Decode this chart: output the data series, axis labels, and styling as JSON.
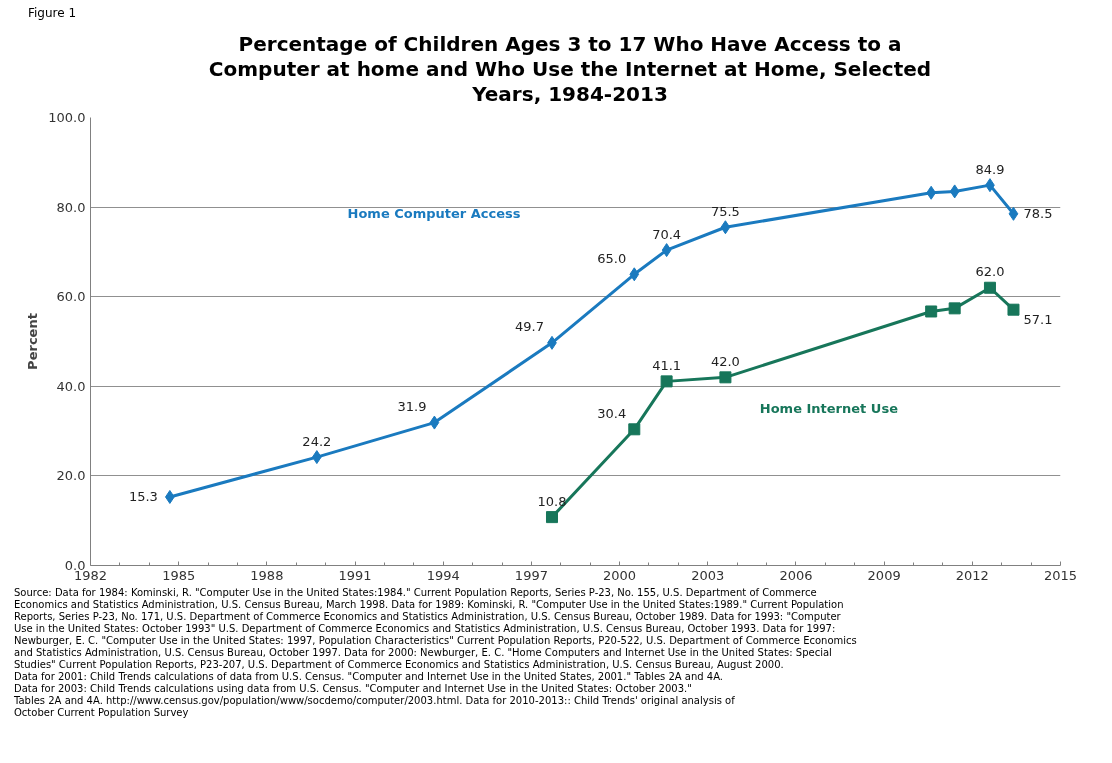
{
  "chart_data": {
    "type": "line",
    "title": "Percentage of Children Ages 3 to 17 Who Have Access to a Computer at home and Who Use the Internet at Home, Selected Years, 1984-2013",
    "ylabel": "Percent",
    "xlim": [
      1982,
      2015
    ],
    "xticks": [
      1982,
      1985,
      1988,
      1991,
      1994,
      1997,
      2000,
      2003,
      2006,
      2009,
      2012,
      2015
    ],
    "ylim": [
      0,
      100
    ],
    "yticks": [
      {
        "value": 0,
        "label": "0.0"
      },
      {
        "value": 20,
        "label": "20.0"
      },
      {
        "value": 40,
        "label": "40.0"
      },
      {
        "value": 60,
        "label": "60.0"
      },
      {
        "value": 80,
        "label": "80.0"
      },
      {
        "value": 100,
        "label": "100.0"
      }
    ],
    "grid": "y",
    "legend": false,
    "line_style": "solid",
    "series": [
      {
        "name": "Home Computer Access",
        "color": "#1a7abf",
        "marker": "diamond",
        "x": [
          1984.7,
          1989.7,
          1993.7,
          1997.7,
          2000.5,
          2001.6,
          2003.6,
          2010.6,
          2011.4,
          2012.6,
          2013.4
        ],
        "values": [
          15.3,
          24.2,
          31.9,
          49.7,
          65.0,
          70.4,
          75.5,
          83.2,
          83.5,
          84.9,
          78.5
        ],
        "value_labels": [
          "15.3",
          "24.2",
          "31.9",
          "49.7",
          "65.0",
          "70.4",
          "75.5",
          null,
          null,
          "84.9",
          "78.5"
        ]
      },
      {
        "name": "Home Internet Use",
        "color": "#17765a",
        "marker": "square",
        "x": [
          1997.7,
          2000.5,
          2001.6,
          2003.6,
          2010.6,
          2011.4,
          2012.6,
          2013.4
        ],
        "values": [
          10.8,
          30.4,
          41.1,
          42.0,
          56.7,
          57.4,
          62.0,
          57.1
        ],
        "value_labels": [
          "10.8",
          "30.4",
          "41.1",
          "42.0",
          null,
          null,
          "62.0",
          "57.1"
        ]
      }
    ],
    "annotations": [
      "Figure 1",
      "Source: Data for 1984: Kominski, R. \"Computer Use in the United States:1984.\" Current Population Reports, Series P-23, No. 155, U.S. Department of Commerce\nEconomics and Statistics Administration, U.S. Census Bureau, March 1998. Data for 1989: Kominski, R. \"Computer Use in the United States:1989.\" Current Population\nReports, Series P-23, No. 171, U.S. Department of Commerce Economics and Statistics Administration, U.S. Census Bureau, October 1989.  Data for 1993: \"Computer\nUse in the United States: October 1993\" U.S. Department of Commerce Economics and Statistics Administration, U.S. Census Bureau, October 1993.  Data for 1997:\nNewburger, E. C. \"Computer Use in the United States: 1997, Population Characteristics\" Current Population Reports, P20-522, U.S. Department of Commerce Economics\nand Statistics Administration, U.S. Census Bureau, October 1997.  Data for 2000: Newburger, E. C. \"Home Computers and Internet Use in the United States: Special\nStudies\" Current Population Reports, P23-207, U.S. Department of Commerce Economics and Statistics Administration, U.S. Census Bureau,  August 2000.\nData for 2001: Child Trends calculations of data from U.S. Census. \"Computer and Internet Use in the United States, 2001.\" Tables 2A and 4A.\nData for 2003: Child Trends calculations using data from U.S. Census. \"Computer and Internet Use in the United States: October 2003.\"\nTables 2A and 4A.  http://www.census.gov/population/www/socdemo/computer/2003.html.  Data for  2010-2013:: Child Trends' original analysis of\nOctober Current Population Survey"
    ]
  }
}
